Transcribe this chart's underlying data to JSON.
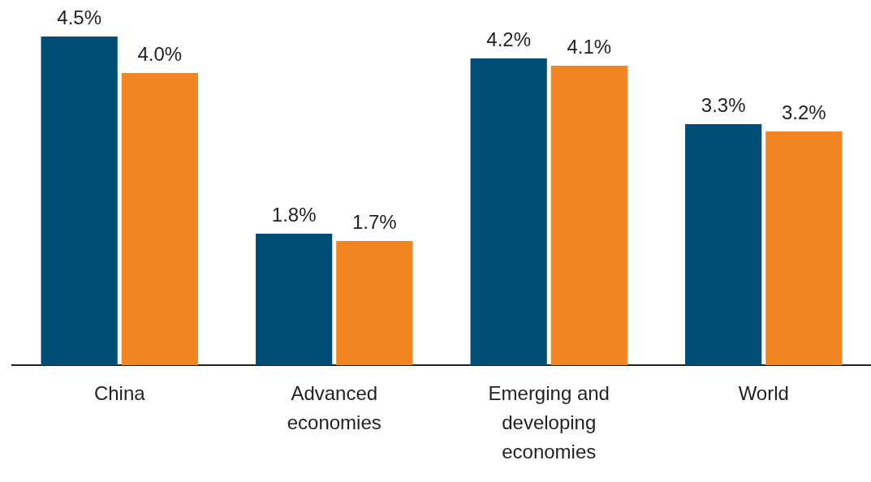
{
  "chart_data": {
    "type": "bar",
    "categories": [
      "China",
      "Advanced economies",
      "Emerging and developing economies",
      "World"
    ],
    "series": [
      {
        "color": "#004d76",
        "values": [
          4.5,
          1.8,
          4.2,
          3.3
        ],
        "value_labels": [
          "4.5%",
          "1.8%",
          "4.2%",
          "3.3%"
        ]
      },
      {
        "color": "#f08522",
        "values": [
          4.0,
          1.7,
          4.1,
          3.2
        ],
        "value_labels": [
          "4.0%",
          "1.7%",
          "4.1%",
          "3.2%"
        ]
      }
    ],
    "grid": false,
    "legend": false,
    "tick_labels": "x"
  }
}
